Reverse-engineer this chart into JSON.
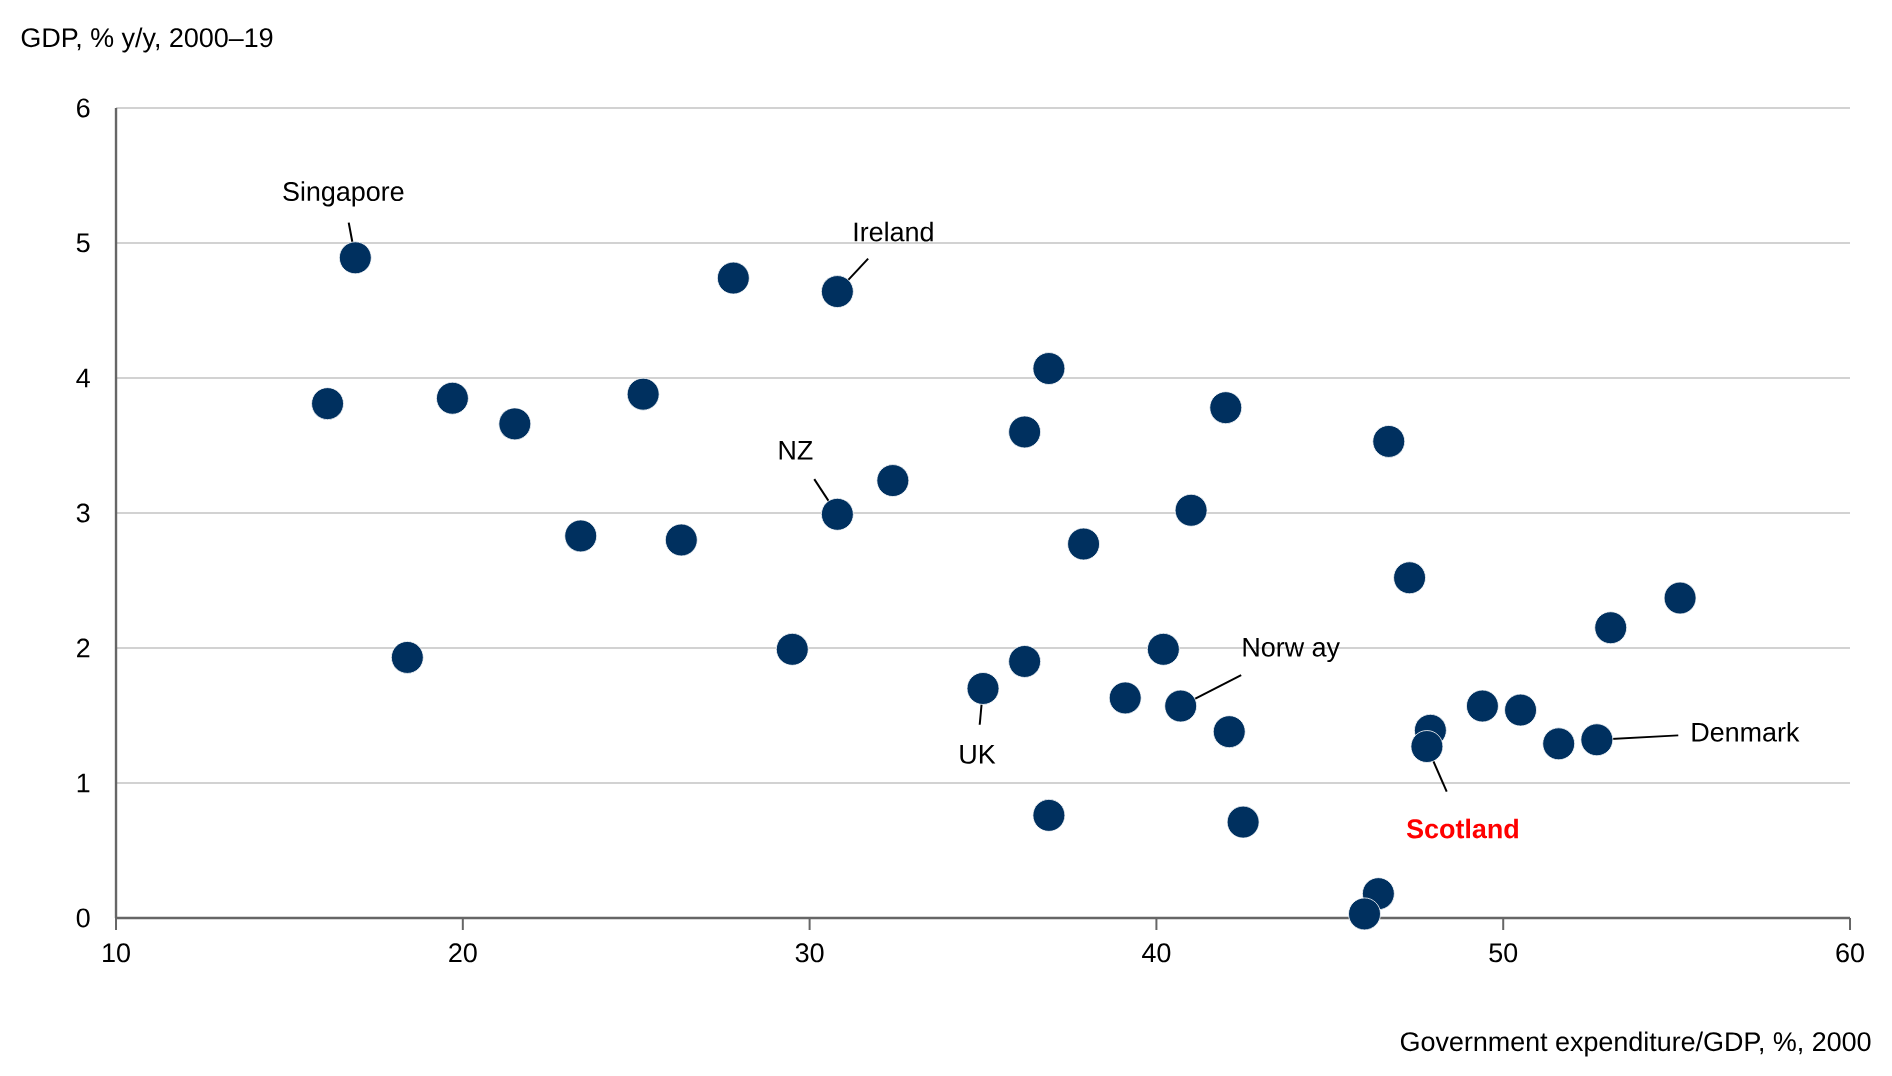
{
  "chart_data": {
    "type": "scatter",
    "ylabel": "GDP,  % y/y, 2000–19",
    "xlabel": "Government  expenditure/GDP,  %, 2000",
    "xlim": [
      10,
      60
    ],
    "xticks": [
      10,
      20,
      30,
      40,
      50,
      60
    ],
    "ylim": [
      0,
      6
    ],
    "yticks": [
      0,
      1,
      2,
      3,
      4,
      5,
      6
    ],
    "grid": "y",
    "marker": "circle",
    "x": [
      16.1,
      16.9,
      18.4,
      19.7,
      21.5,
      23.4,
      25.2,
      26.3,
      27.8,
      29.5,
      30.8,
      30.8,
      32.4,
      35.0,
      36.2,
      36.2,
      36.9,
      36.9,
      37.9,
      39.1,
      40.2,
      40.7,
      41.0,
      42.0,
      42.1,
      42.5,
      46.7,
      47.3,
      46.4,
      46.0,
      47.9,
      47.8,
      49.4,
      50.5,
      51.6,
      52.7,
      53.1,
      55.1
    ],
    "series": [
      {
        "color": "#00305f",
        "values": [
          3.81,
          4.89,
          1.93,
          3.85,
          3.66,
          2.83,
          3.88,
          2.8,
          4.74,
          1.99,
          4.64,
          2.99,
          3.24,
          1.7,
          1.9,
          3.6,
          4.07,
          0.76,
          2.77,
          1.63,
          1.99,
          1.57,
          3.02,
          3.78,
          1.38,
          0.71,
          3.53,
          2.52,
          0.18,
          0.03,
          1.39,
          1.27,
          1.57,
          1.54,
          1.29,
          1.32,
          2.15,
          2.37
        ]
      }
    ],
    "annotations": [
      {
        "text": "Singapore",
        "x": 16.9,
        "y": 4.89
      },
      {
        "text": "Ireland",
        "x": 30.8,
        "y": 4.64
      },
      {
        "text": "NZ",
        "x": 30.8,
        "y": 2.99
      },
      {
        "text": "UK",
        "x": 35.0,
        "y": 1.7
      },
      {
        "text": "Norw ay",
        "x": 40.7,
        "y": 1.57
      },
      {
        "text": "**Scotland**",
        "x": 47.8,
        "y": 1.27
      },
      {
        "text": "Denmark",
        "x": 52.7,
        "y": 1.32
      }
    ]
  }
}
